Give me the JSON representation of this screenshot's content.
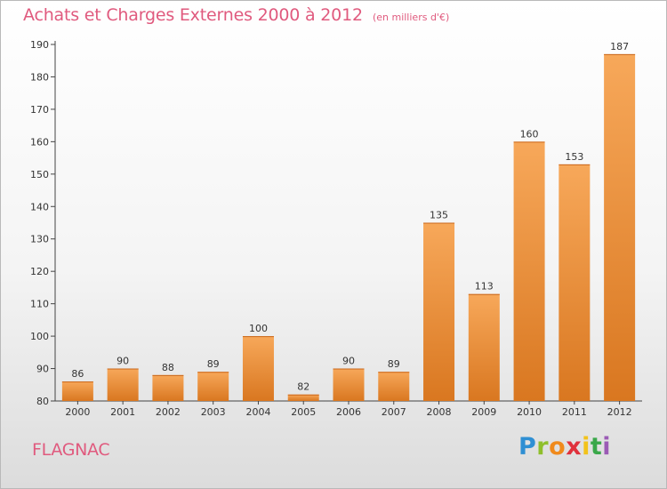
{
  "header": {
    "title": "Achats et Charges Externes 2000 à 2012",
    "subtitle": "(en milliers d'€)"
  },
  "footer": {
    "commune": "FLAGNAC",
    "logo_letters": [
      "P",
      "r",
      "o",
      "x",
      "i",
      "t",
      "i"
    ]
  },
  "colors": {
    "bar_light": "#f7a85a",
    "bar_dark": "#d97720",
    "title": "#e05a7e"
  },
  "chart_data": {
    "type": "bar",
    "title": "Achats et Charges Externes 2000 à 2012",
    "subtitle": "(en milliers d'€)",
    "categories": [
      "2000",
      "2001",
      "2002",
      "2003",
      "2004",
      "2005",
      "2006",
      "2007",
      "2008",
      "2009",
      "2010",
      "2011",
      "2012"
    ],
    "values": [
      86,
      90,
      88,
      89,
      100,
      82,
      90,
      89,
      135,
      113,
      160,
      153,
      187
    ],
    "ylim": [
      80,
      190
    ],
    "yticks": [
      80,
      90,
      100,
      110,
      120,
      130,
      140,
      150,
      160,
      170,
      180,
      190
    ],
    "grid": false,
    "legend": "none"
  }
}
